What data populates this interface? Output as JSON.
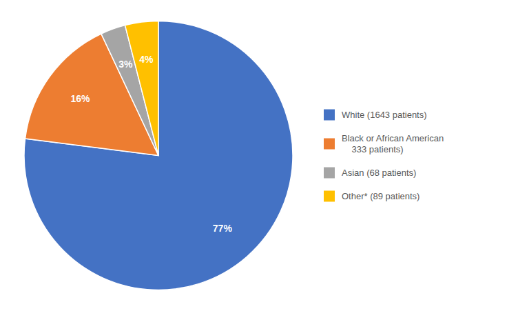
{
  "chart_data": {
    "type": "pie",
    "categories": [
      "White (1643 patients)",
      "Black or African American\n    333 patients)",
      "Asian (68 patients)",
      "Other* (89 patients)"
    ],
    "values": [
      77,
      16,
      3,
      4
    ],
    "value_labels": [
      "77%",
      "16%",
      "3%",
      "4%"
    ],
    "colors": [
      "#4472C4",
      "#ED7D31",
      "#A5A5A5",
      "#FFC000"
    ],
    "data_labels": true,
    "legend": "right"
  }
}
